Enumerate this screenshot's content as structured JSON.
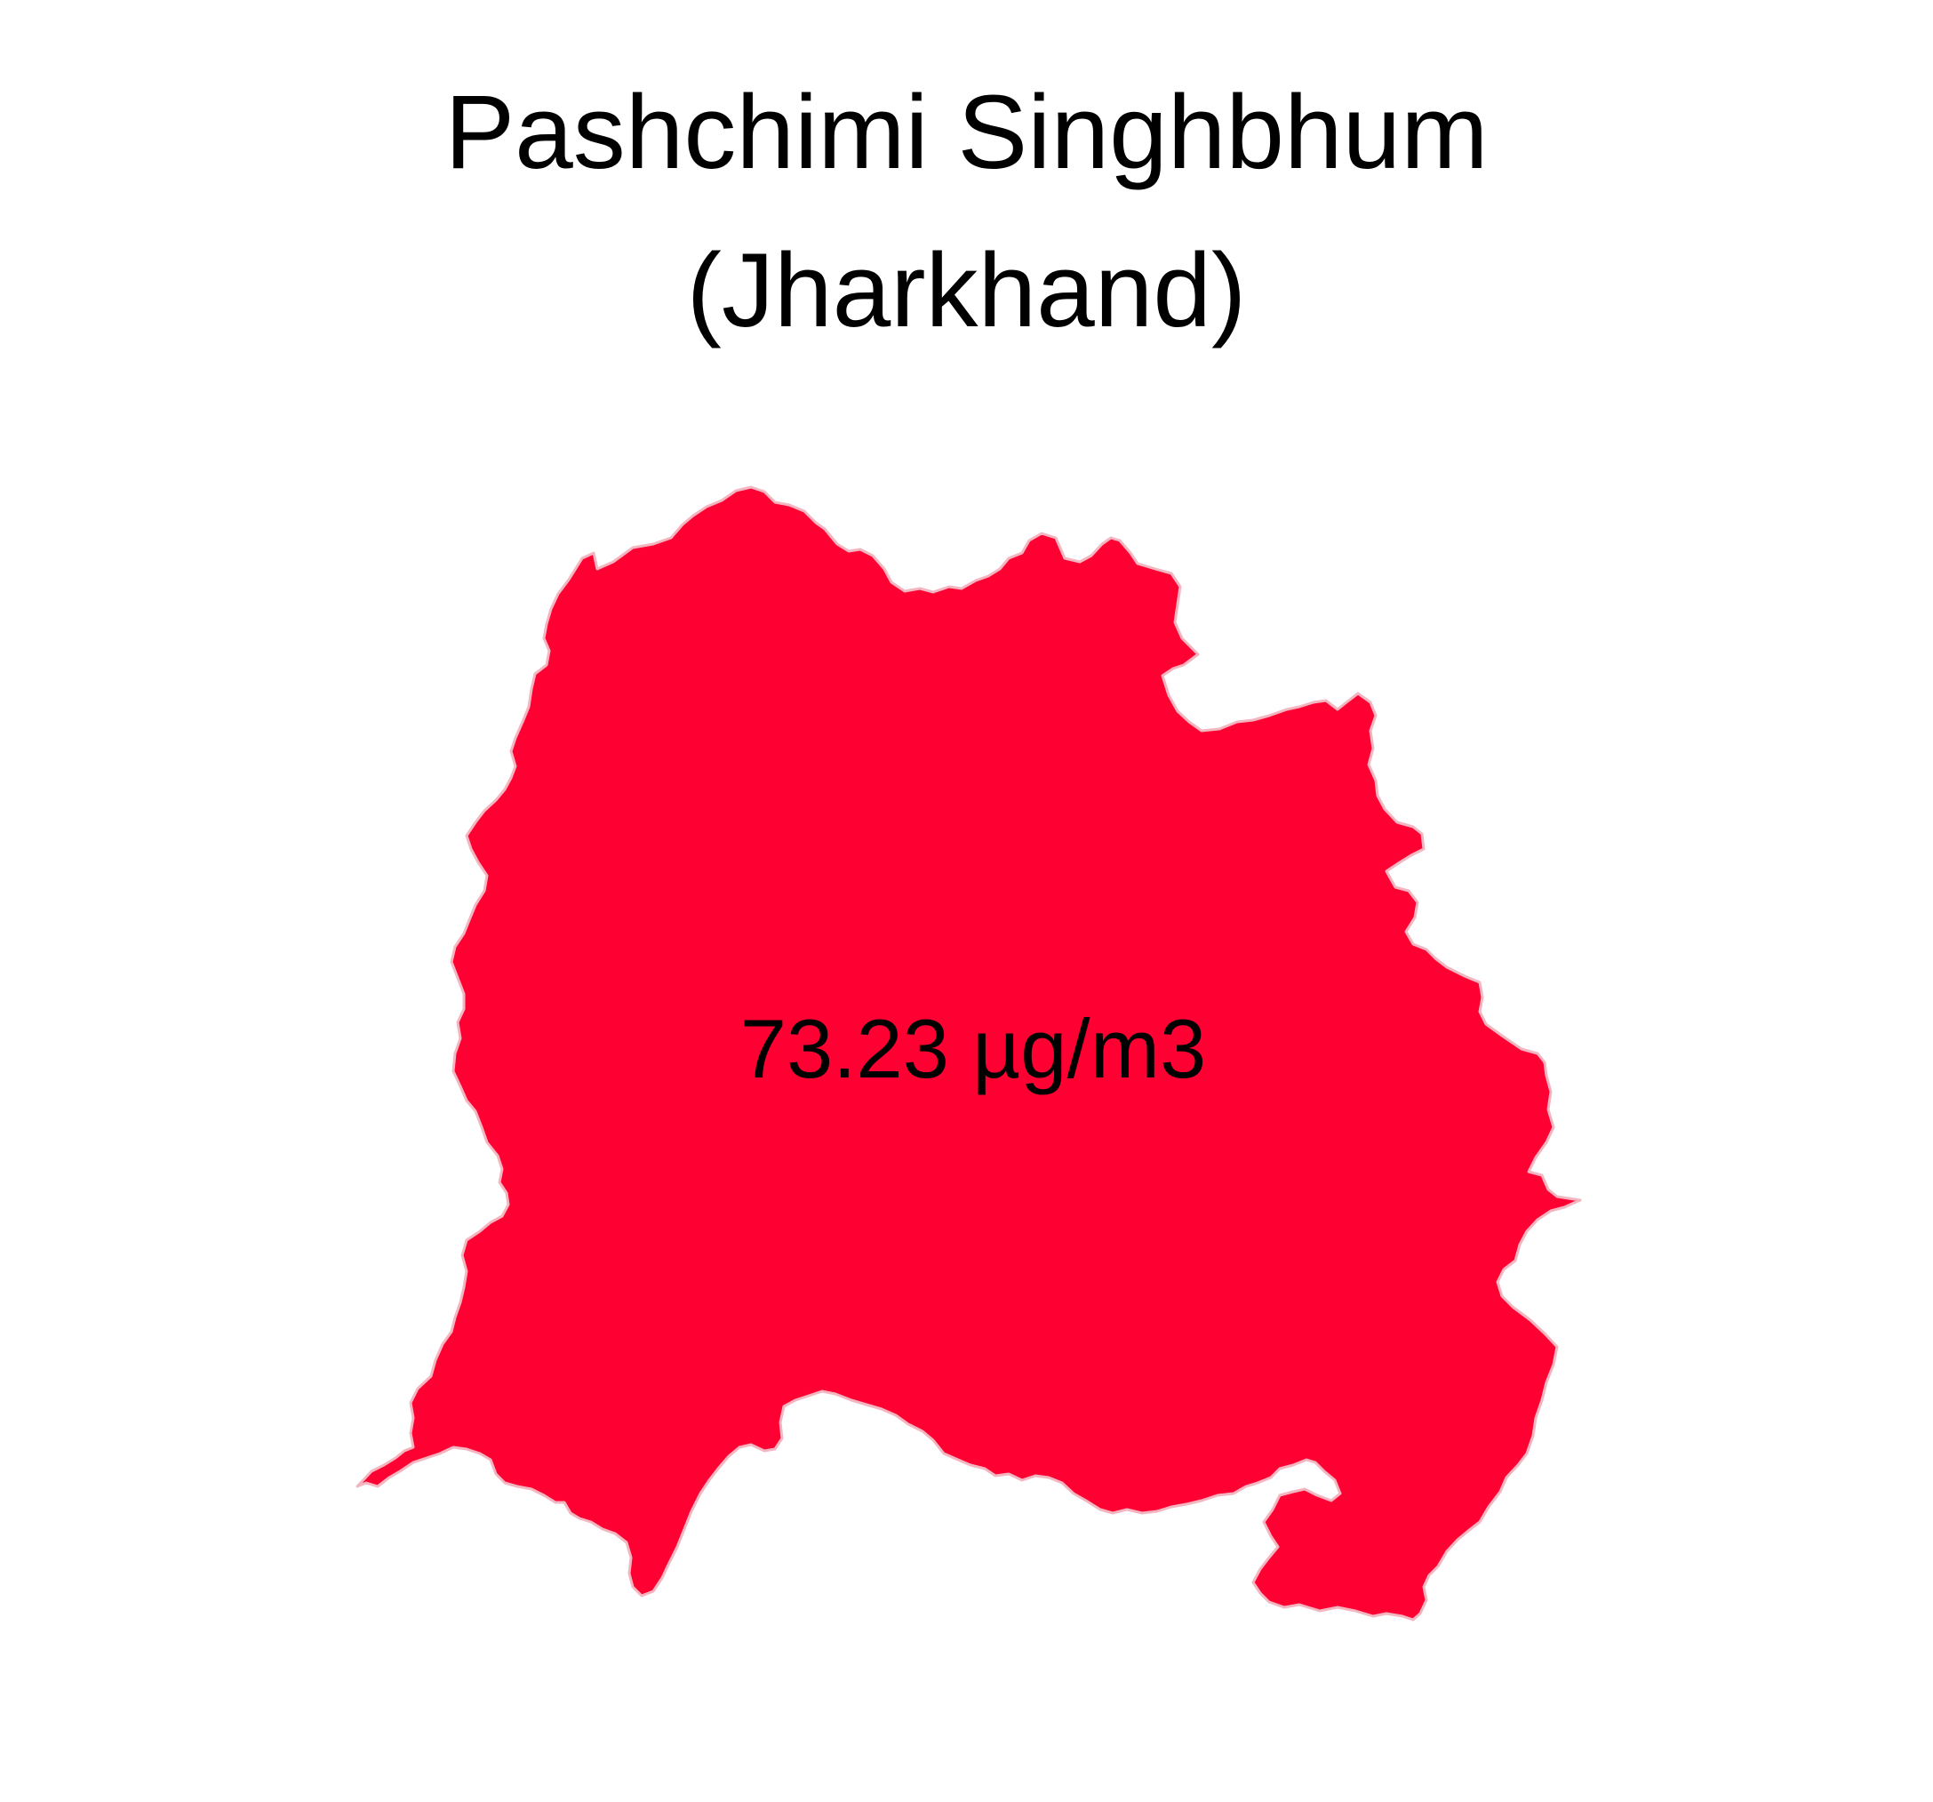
{
  "map": {
    "title_line1": "Pashchimi Singhbhum",
    "title_line2": "(Jharkhand)",
    "region_name": "Pashchimi Singhbhum",
    "state": "Jharkhand",
    "value_label": "73.23 µg/m3",
    "fill_color": "#FF0033",
    "outline_color": "#F3B6C1",
    "background_color": "#FFFFFF"
  }
}
